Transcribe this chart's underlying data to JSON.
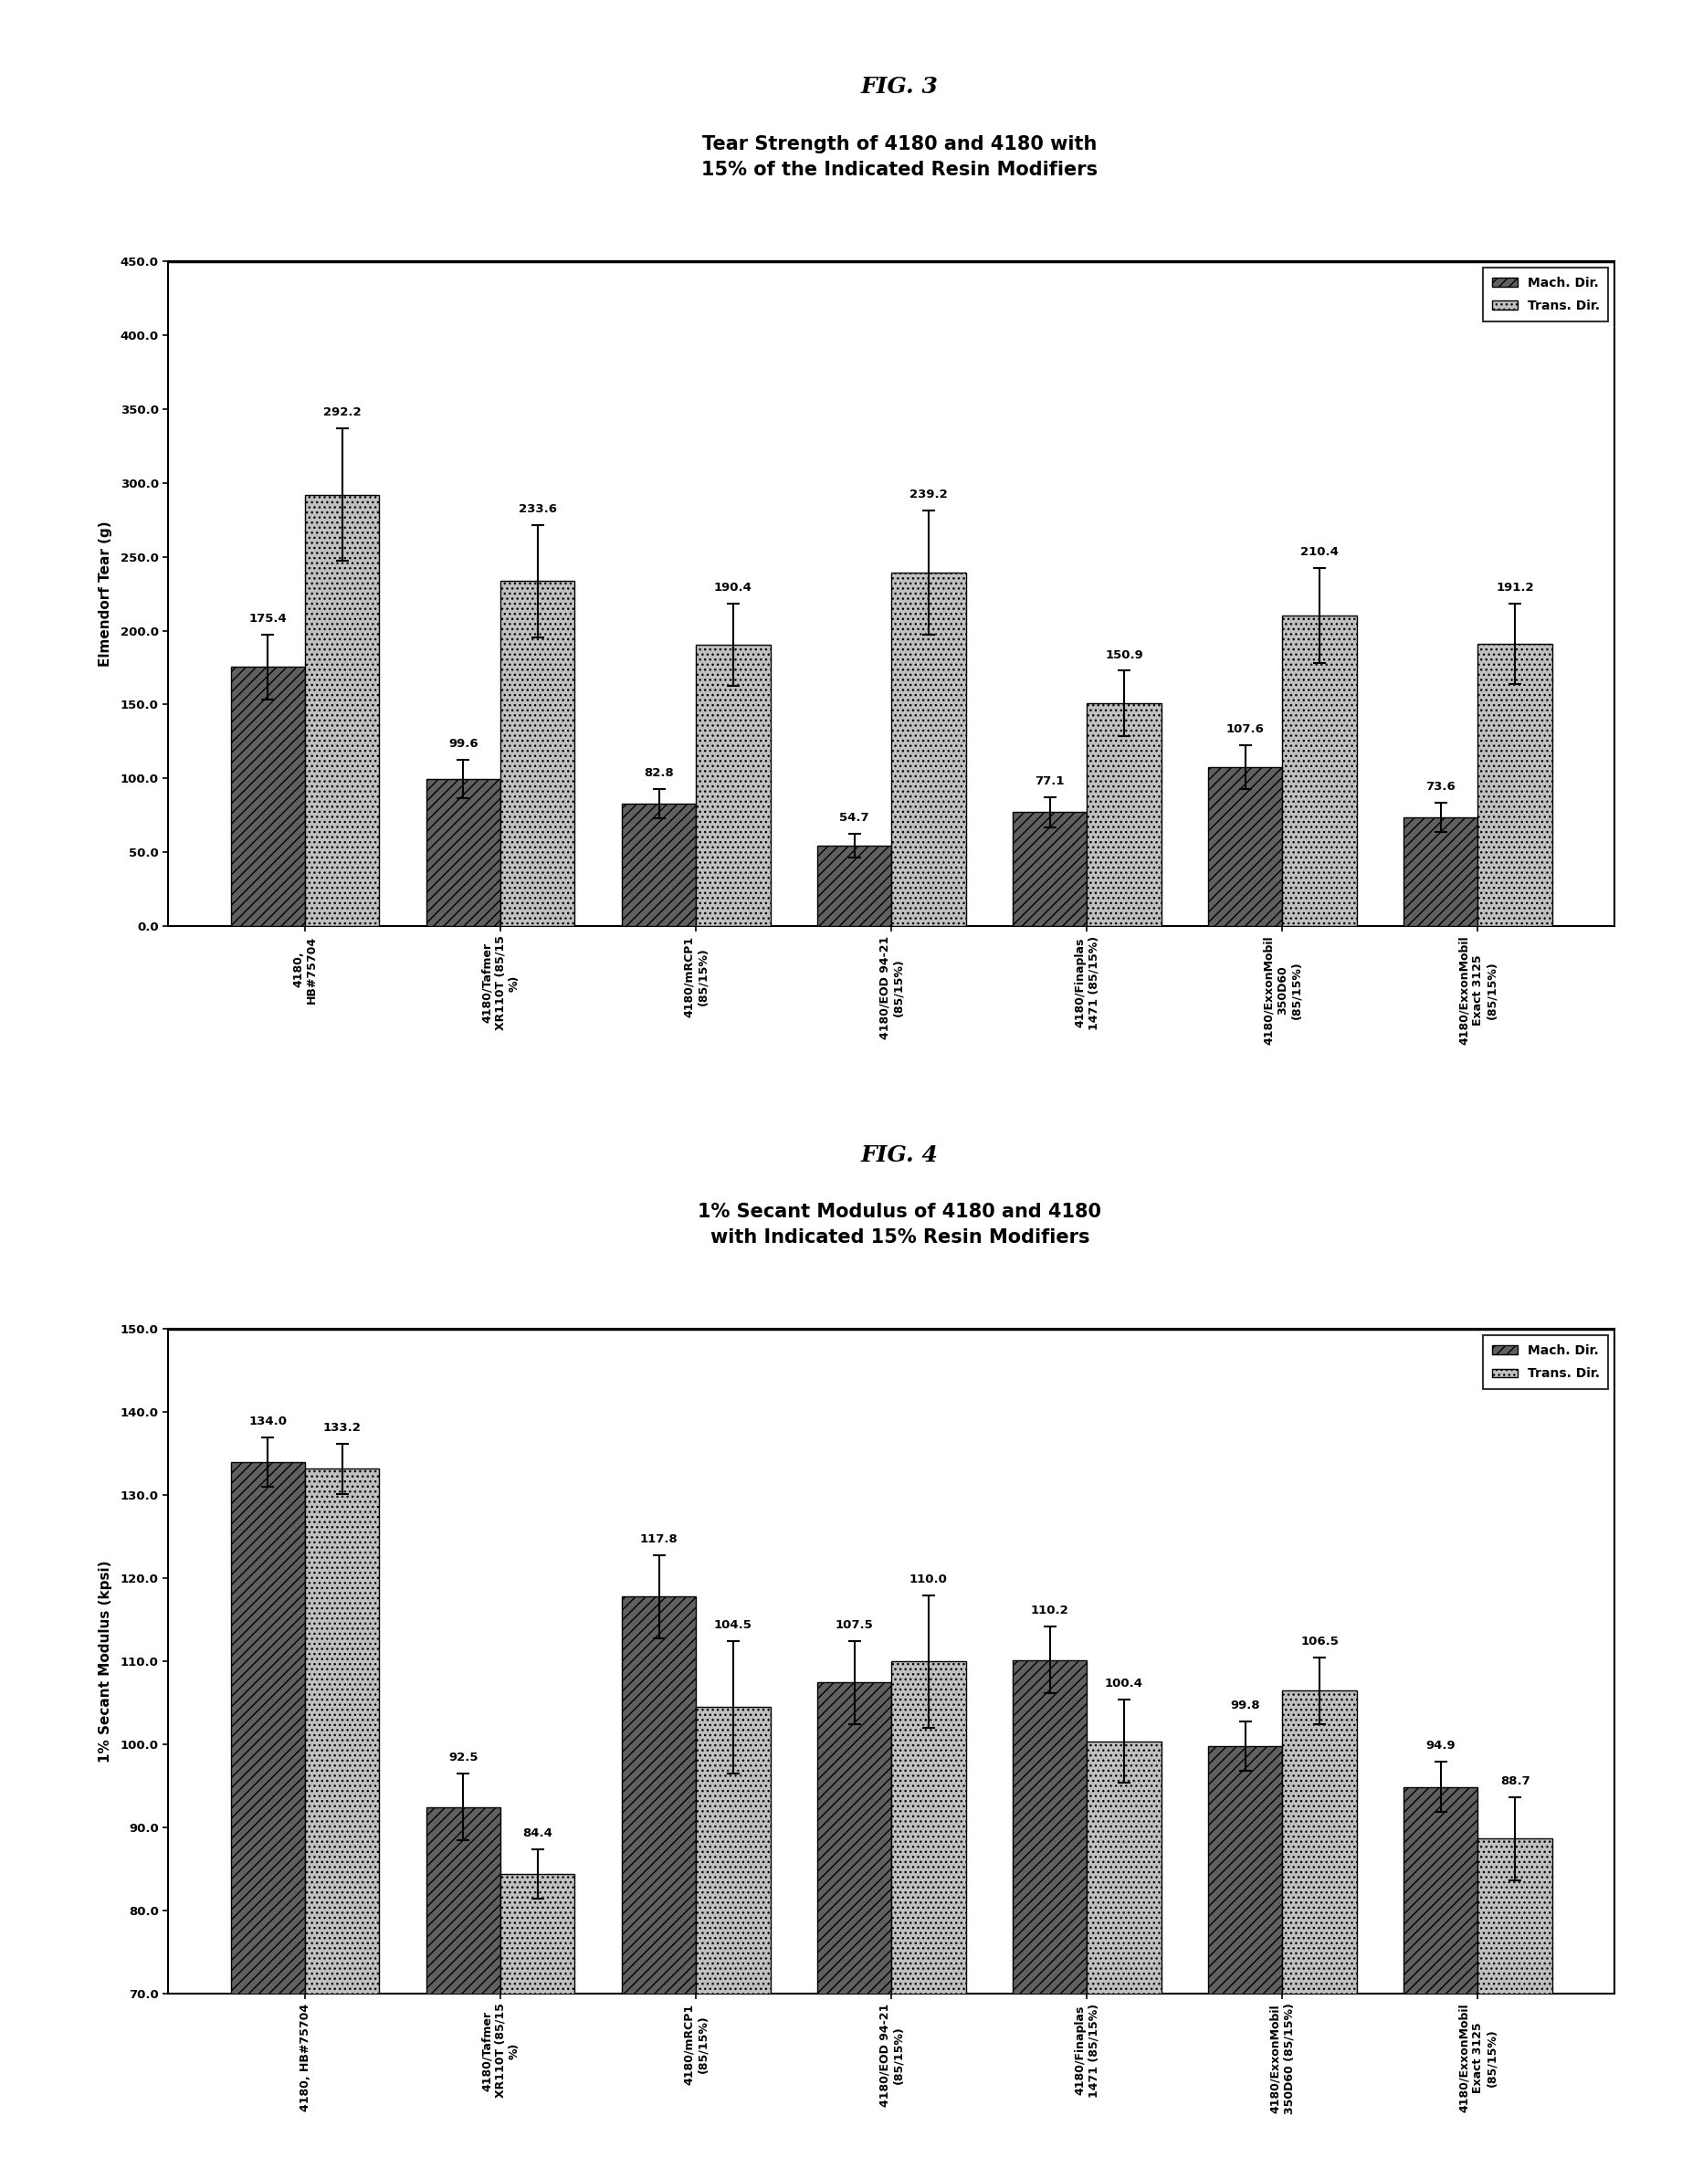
{
  "fig3": {
    "title_fig": "FIG. 3",
    "title": "Tear Strength of 4180 and 4180 with\n15% of the Indicated Resin Modifiers",
    "ylabel": "Elmendorf Tear (g)",
    "ylim": [
      0.0,
      450.0
    ],
    "yticks": [
      0.0,
      50.0,
      100.0,
      150.0,
      200.0,
      250.0,
      300.0,
      350.0,
      400.0,
      450.0
    ],
    "categories": [
      "4180,\nHB#75704",
      "4180/Tafmer\nXR110T (85/15\n%)",
      "4180/mRCP1\n(85/15%)",
      "4180/EOD 94-21\n(85/15%)",
      "4180/Finaplas\n1471 (85/15%)",
      "4180/ExxonMobil\n350D60\n(85/15%)",
      "4180/ExxonMobil\nExact 3125\n(85/15%)"
    ],
    "mach_values": [
      175.4,
      99.6,
      82.8,
      54.7,
      77.1,
      107.6,
      73.6
    ],
    "trans_values": [
      292.2,
      233.6,
      190.4,
      239.2,
      150.9,
      210.4,
      191.2
    ],
    "mach_errors": [
      22,
      13,
      10,
      8,
      10,
      15,
      10
    ],
    "trans_errors": [
      45,
      38,
      28,
      42,
      22,
      32,
      27
    ],
    "legend_labels": [
      "Mach. Dir.",
      "Trans. Dir."
    ]
  },
  "fig4": {
    "title_fig": "FIG. 4",
    "title": "1% Secant Modulus of 4180 and 4180\nwith Indicated 15% Resin Modifiers",
    "ylabel": "1% Secant Modulus (kpsi)",
    "ylim": [
      70.0,
      150.0
    ],
    "yticks": [
      70.0,
      80.0,
      90.0,
      100.0,
      110.0,
      120.0,
      130.0,
      140.0,
      150.0
    ],
    "categories": [
      "4180, HB#75704",
      "4180/Tafmer\nXR110T (85/15\n%)",
      "4180/mRCP1\n(85/15%)",
      "4180/EOD 94-21\n(85/15%)",
      "4180/Finaplas\n1471 (85/15%)",
      "4180/ExxonMobil\n350D60 (85/15%)",
      "4180/ExxonMobil\nExact 3125\n(85/15%)"
    ],
    "mach_values": [
      134.0,
      92.5,
      117.8,
      107.5,
      110.2,
      99.8,
      94.9
    ],
    "trans_values": [
      133.2,
      84.4,
      104.5,
      110.0,
      100.4,
      106.5,
      88.7
    ],
    "mach_errors": [
      3,
      4,
      5,
      5,
      4,
      3,
      3
    ],
    "trans_errors": [
      3,
      3,
      8,
      8,
      5,
      4,
      5
    ],
    "legend_labels": [
      "Mach. Dir.",
      "Trans. Dir."
    ]
  },
  "bar_width": 0.38,
  "bg_color": "#ffffff"
}
